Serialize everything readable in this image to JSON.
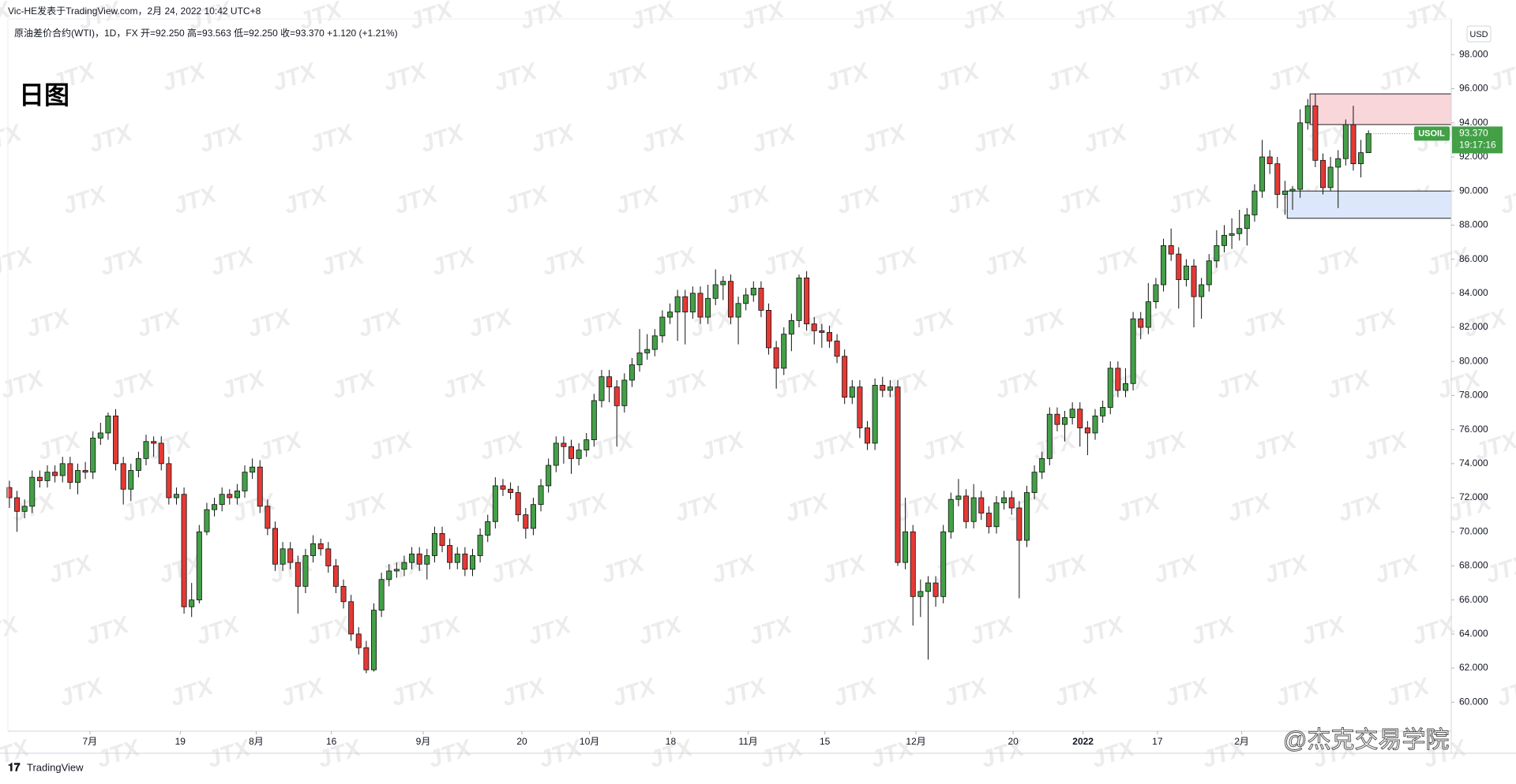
{
  "chart_data": {
    "type": "candlestick",
    "publisher": "Vic-HE发表于TradingView.com，2月 24, 2022 10:42 UTC+8",
    "title": "原油差价合约(WTI)，1D，FX",
    "ohlc_text": "开=92.250  高=93.563  低=92.250  收=93.370  +1.120 (+1.21%)",
    "annotation": "日图",
    "currency": "USD",
    "symbol": "USOIL",
    "last_price": {
      "value": 93.37,
      "label": "93.370"
    },
    "countdown": "19:17:16",
    "watermark": "JTX",
    "credit": "@杰克交易学院",
    "logo": "TradingView",
    "up_color": "#43a047",
    "down_color": "#e53935",
    "wick_color": "#111111",
    "xlim": [
      -0.2,
      189.9
    ],
    "ylim": [
      58.3,
      100.1
    ],
    "yticks": [
      {
        "value": 60,
        "label": "60.000"
      },
      {
        "value": 62,
        "label": "62.000"
      },
      {
        "value": 64,
        "label": "64.000"
      },
      {
        "value": 66,
        "label": "66.000"
      },
      {
        "value": 68,
        "label": "68.000"
      },
      {
        "value": 70,
        "label": "70.000"
      },
      {
        "value": 72,
        "label": "72.000"
      },
      {
        "value": 74,
        "label": "74.000"
      },
      {
        "value": 76,
        "label": "76.000"
      },
      {
        "value": 78,
        "label": "78.000"
      },
      {
        "value": 80,
        "label": "80.000"
      },
      {
        "value": 82,
        "label": "82.000"
      },
      {
        "value": 84,
        "label": "84.000"
      },
      {
        "value": 86,
        "label": "86.000"
      },
      {
        "value": 88,
        "label": "88.000"
      },
      {
        "value": 90,
        "label": "90.000"
      },
      {
        "value": 92,
        "label": "92.000"
      },
      {
        "value": 94,
        "label": "94.000"
      },
      {
        "value": 96,
        "label": "96.000"
      },
      {
        "value": 98,
        "label": "98.000"
      }
    ],
    "xticks": [
      {
        "value": 10.6,
        "label": "7月"
      },
      {
        "value": 22.5,
        "label": "19"
      },
      {
        "value": 32.5,
        "label": "8月"
      },
      {
        "value": 42.4,
        "label": "16"
      },
      {
        "value": 54.5,
        "label": "9月"
      },
      {
        "value": 67.5,
        "label": "20"
      },
      {
        "value": 76.4,
        "label": "10月"
      },
      {
        "value": 87.1,
        "label": "18"
      },
      {
        "value": 97.3,
        "label": "11月"
      },
      {
        "value": 107.4,
        "label": "15"
      },
      {
        "value": 119.4,
        "label": "12月"
      },
      {
        "value": 132.2,
        "label": "20"
      },
      {
        "value": 141.4,
        "label": "2022"
      },
      {
        "value": 151.2,
        "label": "17"
      },
      {
        "value": 162.3,
        "label": "2月"
      }
    ],
    "zones": [
      {
        "from": 93.9,
        "to": 95.7,
        "start": 171.3,
        "color": "#f9d6da"
      },
      {
        "from": 88.4,
        "to": 90.0,
        "start": 168.3,
        "color": "#dce7fb"
      }
    ],
    "ohlc": [
      [
        72.6,
        73.0,
        71.4,
        72.0
      ],
      [
        72.0,
        72.4,
        70.0,
        71.2
      ],
      [
        71.2,
        71.9,
        70.8,
        71.5
      ],
      [
        71.5,
        73.6,
        71.1,
        73.2
      ],
      [
        73.2,
        73.6,
        72.6,
        73.0
      ],
      [
        73.0,
        73.9,
        72.6,
        73.5
      ],
      [
        73.5,
        73.9,
        72.9,
        73.3
      ],
      [
        73.3,
        74.4,
        72.9,
        74.0
      ],
      [
        74.0,
        74.4,
        72.5,
        72.9
      ],
      [
        72.9,
        74.0,
        72.2,
        73.6
      ],
      [
        73.6,
        74.1,
        73.1,
        73.5
      ],
      [
        73.5,
        75.9,
        73.1,
        75.5
      ],
      [
        75.5,
        76.4,
        75.1,
        75.8
      ],
      [
        75.8,
        77.0,
        75.4,
        76.8
      ],
      [
        76.8,
        77.2,
        73.6,
        74.0
      ],
      [
        74.0,
        74.4,
        71.6,
        72.5
      ],
      [
        72.5,
        74.0,
        71.8,
        73.6
      ],
      [
        73.6,
        74.7,
        73.2,
        74.3
      ],
      [
        74.3,
        75.7,
        73.9,
        75.3
      ],
      [
        75.3,
        75.6,
        74.4,
        75.2
      ],
      [
        75.2,
        75.6,
        73.6,
        74.0
      ],
      [
        74.0,
        74.4,
        71.6,
        72.0
      ],
      [
        72.0,
        72.6,
        71.6,
        72.2
      ],
      [
        72.2,
        72.6,
        65.2,
        65.6
      ],
      [
        65.6,
        67.0,
        65.0,
        66.0
      ],
      [
        66.0,
        70.4,
        65.8,
        70.0
      ],
      [
        70.0,
        71.7,
        69.8,
        71.3
      ],
      [
        71.3,
        72.0,
        70.9,
        71.6
      ],
      [
        71.6,
        72.6,
        71.2,
        72.2
      ],
      [
        72.2,
        72.5,
        71.6,
        72.0
      ],
      [
        72.0,
        72.8,
        71.6,
        72.4
      ],
      [
        72.4,
        73.9,
        72.0,
        73.5
      ],
      [
        73.5,
        74.3,
        73.1,
        73.8
      ],
      [
        73.8,
        74.2,
        71.1,
        71.5
      ],
      [
        71.5,
        71.9,
        69.8,
        70.2
      ],
      [
        70.2,
        70.6,
        67.7,
        68.1
      ],
      [
        68.1,
        69.4,
        67.7,
        69.0
      ],
      [
        69.0,
        69.4,
        67.8,
        68.2
      ],
      [
        68.2,
        68.6,
        65.2,
        66.8
      ],
      [
        66.8,
        69.0,
        66.4,
        68.6
      ],
      [
        68.6,
        69.8,
        68.2,
        69.3
      ],
      [
        69.3,
        69.6,
        68.6,
        69.0
      ],
      [
        69.0,
        69.4,
        67.6,
        68.0
      ],
      [
        68.0,
        68.4,
        66.4,
        66.8
      ],
      [
        66.8,
        67.2,
        65.5,
        65.9
      ],
      [
        65.9,
        66.3,
        63.6,
        64.0
      ],
      [
        64.0,
        64.4,
        62.8,
        63.2
      ],
      [
        63.2,
        63.6,
        61.7,
        61.9
      ],
      [
        61.9,
        65.8,
        61.8,
        65.4
      ],
      [
        65.4,
        67.6,
        65.0,
        67.2
      ],
      [
        67.2,
        68.1,
        66.8,
        67.7
      ],
      [
        67.7,
        68.2,
        67.3,
        67.8
      ],
      [
        67.8,
        68.6,
        67.4,
        68.2
      ],
      [
        68.2,
        69.1,
        67.8,
        68.7
      ],
      [
        68.7,
        69.1,
        67.7,
        68.1
      ],
      [
        68.1,
        69.0,
        67.2,
        68.6
      ],
      [
        68.6,
        70.3,
        68.2,
        69.9
      ],
      [
        69.9,
        70.3,
        68.8,
        69.2
      ],
      [
        69.2,
        69.6,
        67.8,
        68.2
      ],
      [
        68.2,
        69.1,
        67.8,
        68.7
      ],
      [
        68.7,
        69.1,
        67.4,
        67.8
      ],
      [
        67.8,
        69.0,
        67.4,
        68.6
      ],
      [
        68.6,
        70.2,
        68.2,
        69.8
      ],
      [
        69.8,
        71.0,
        69.4,
        70.6
      ],
      [
        70.6,
        73.2,
        70.2,
        72.7
      ],
      [
        72.7,
        73.1,
        72.1,
        72.5
      ],
      [
        72.5,
        72.9,
        71.9,
        72.3
      ],
      [
        72.3,
        72.7,
        70.6,
        71.0
      ],
      [
        71.0,
        71.4,
        69.6,
        70.2
      ],
      [
        70.2,
        72.0,
        69.8,
        71.6
      ],
      [
        71.6,
        73.1,
        71.2,
        72.7
      ],
      [
        72.7,
        74.3,
        72.3,
        73.9
      ],
      [
        73.9,
        75.6,
        73.5,
        75.2
      ],
      [
        75.2,
        75.6,
        74.0,
        75.0
      ],
      [
        75.0,
        75.4,
        73.4,
        74.3
      ],
      [
        74.3,
        75.2,
        73.9,
        74.8
      ],
      [
        74.8,
        75.8,
        74.4,
        75.4
      ],
      [
        75.4,
        78.1,
        75.0,
        77.7
      ],
      [
        77.7,
        79.5,
        77.3,
        79.1
      ],
      [
        79.1,
        79.5,
        77.6,
        78.5
      ],
      [
        78.5,
        78.9,
        75.0,
        77.4
      ],
      [
        77.4,
        79.3,
        77.0,
        78.9
      ],
      [
        78.9,
        80.2,
        78.5,
        79.8
      ],
      [
        79.8,
        81.9,
        79.4,
        80.5
      ],
      [
        80.5,
        81.6,
        80.1,
        80.7
      ],
      [
        80.7,
        81.9,
        80.3,
        81.5
      ],
      [
        81.5,
        83.0,
        81.1,
        82.6
      ],
      [
        82.6,
        83.4,
        82.2,
        82.9
      ],
      [
        82.9,
        84.2,
        81.2,
        83.8
      ],
      [
        83.8,
        84.2,
        81.0,
        82.9
      ],
      [
        82.9,
        84.4,
        82.5,
        84.0
      ],
      [
        84.0,
        84.4,
        82.2,
        82.6
      ],
      [
        82.6,
        84.5,
        82.2,
        83.7
      ],
      [
        83.7,
        85.4,
        83.3,
        84.5
      ],
      [
        84.5,
        85.0,
        83.6,
        84.7
      ],
      [
        84.7,
        85.1,
        82.2,
        82.6
      ],
      [
        82.6,
        83.8,
        81.0,
        83.4
      ],
      [
        83.4,
        84.3,
        83.0,
        83.9
      ],
      [
        83.9,
        84.7,
        83.5,
        84.3
      ],
      [
        84.3,
        84.7,
        82.6,
        83.0
      ],
      [
        83.0,
        83.4,
        80.4,
        80.8
      ],
      [
        80.8,
        81.2,
        78.4,
        79.6
      ],
      [
        79.6,
        82.0,
        79.2,
        81.6
      ],
      [
        81.6,
        82.8,
        80.6,
        82.4
      ],
      [
        82.4,
        85.1,
        82.0,
        84.9
      ],
      [
        84.9,
        85.3,
        81.8,
        82.2
      ],
      [
        82.2,
        82.6,
        81.0,
        81.8
      ],
      [
        81.8,
        82.2,
        80.8,
        81.7
      ],
      [
        81.7,
        82.1,
        80.8,
        81.2
      ],
      [
        81.2,
        81.6,
        79.9,
        80.3
      ],
      [
        80.3,
        80.7,
        77.5,
        77.9
      ],
      [
        77.9,
        78.9,
        77.5,
        78.5
      ],
      [
        78.5,
        78.9,
        75.5,
        76.1
      ],
      [
        76.1,
        76.5,
        74.8,
        75.2
      ],
      [
        75.2,
        79.0,
        74.8,
        78.6
      ],
      [
        78.6,
        79.1,
        77.9,
        78.3
      ],
      [
        78.3,
        78.9,
        77.9,
        78.5
      ],
      [
        78.5,
        78.9,
        68.0,
        68.2
      ],
      [
        68.2,
        72.0,
        67.8,
        70.0
      ],
      [
        70.0,
        70.4,
        64.5,
        66.2
      ],
      [
        66.2,
        67.2,
        65.0,
        66.5
      ],
      [
        66.5,
        67.4,
        62.5,
        67.0
      ],
      [
        67.0,
        67.4,
        65.6,
        66.2
      ],
      [
        66.2,
        70.4,
        65.8,
        70.0
      ],
      [
        70.0,
        72.3,
        69.6,
        71.9
      ],
      [
        71.9,
        73.1,
        71.5,
        72.1
      ],
      [
        72.1,
        72.5,
        70.2,
        70.6
      ],
      [
        70.6,
        72.8,
        70.2,
        72.0
      ],
      [
        72.0,
        72.4,
        70.7,
        71.1
      ],
      [
        71.1,
        71.5,
        69.9,
        70.3
      ],
      [
        70.3,
        72.1,
        69.9,
        71.7
      ],
      [
        71.7,
        72.4,
        71.3,
        72.0
      ],
      [
        72.0,
        72.4,
        71.0,
        71.4
      ],
      [
        71.4,
        71.8,
        66.1,
        69.5
      ],
      [
        69.5,
        72.7,
        69.1,
        72.3
      ],
      [
        72.3,
        73.9,
        71.9,
        73.5
      ],
      [
        73.5,
        74.7,
        73.1,
        74.3
      ],
      [
        74.3,
        77.3,
        73.9,
        76.9
      ],
      [
        76.9,
        77.3,
        75.9,
        76.3
      ],
      [
        76.3,
        77.1,
        75.3,
        76.7
      ],
      [
        76.7,
        77.6,
        76.3,
        77.2
      ],
      [
        77.2,
        77.6,
        75.0,
        76.1
      ],
      [
        76.1,
        76.5,
        74.5,
        75.8
      ],
      [
        75.8,
        77.2,
        75.4,
        76.8
      ],
      [
        76.8,
        77.7,
        76.4,
        77.3
      ],
      [
        77.3,
        80.0,
        76.9,
        79.6
      ],
      [
        79.6,
        80.0,
        77.9,
        78.3
      ],
      [
        78.3,
        79.6,
        77.9,
        78.7
      ],
      [
        78.7,
        82.9,
        78.3,
        82.5
      ],
      [
        82.5,
        82.9,
        81.3,
        82.0
      ],
      [
        82.0,
        84.6,
        81.6,
        83.5
      ],
      [
        83.5,
        84.9,
        83.1,
        84.5
      ],
      [
        84.5,
        87.2,
        84.1,
        86.8
      ],
      [
        86.8,
        87.8,
        85.9,
        86.3
      ],
      [
        86.3,
        86.7,
        83.1,
        84.8
      ],
      [
        84.8,
        86.0,
        84.4,
        85.6
      ],
      [
        85.6,
        86.0,
        82.0,
        83.8
      ],
      [
        83.8,
        84.9,
        82.5,
        84.5
      ],
      [
        84.5,
        86.3,
        84.1,
        85.9
      ],
      [
        85.9,
        87.7,
        85.5,
        86.8
      ],
      [
        86.8,
        88.0,
        86.4,
        87.4
      ],
      [
        87.4,
        88.4,
        86.6,
        87.5
      ],
      [
        87.5,
        88.9,
        87.1,
        87.8
      ],
      [
        87.8,
        89.0,
        86.8,
        88.6
      ],
      [
        88.6,
        90.4,
        88.2,
        90.0
      ],
      [
        90.0,
        93.0,
        89.6,
        92.0
      ],
      [
        92.0,
        92.4,
        91.0,
        91.6
      ],
      [
        91.6,
        92.0,
        89.0,
        89.8
      ],
      [
        89.8,
        90.6,
        88.6,
        90.0
      ],
      [
        90.0,
        90.3,
        88.9,
        90.1
      ],
      [
        90.1,
        94.8,
        89.6,
        94.0
      ],
      [
        94.0,
        95.4,
        93.6,
        95.0
      ],
      [
        95.0,
        95.7,
        91.4,
        91.8
      ],
      [
        91.8,
        92.2,
        89.8,
        90.2
      ],
      [
        90.2,
        92.0,
        90.0,
        91.4
      ],
      [
        91.4,
        92.4,
        89.0,
        91.9
      ],
      [
        91.9,
        94.2,
        91.5,
        93.9
      ],
      [
        93.9,
        95.0,
        91.2,
        91.6
      ],
      [
        91.6,
        93.0,
        90.8,
        92.25
      ],
      [
        92.25,
        93.563,
        92.25,
        93.37
      ]
    ]
  }
}
